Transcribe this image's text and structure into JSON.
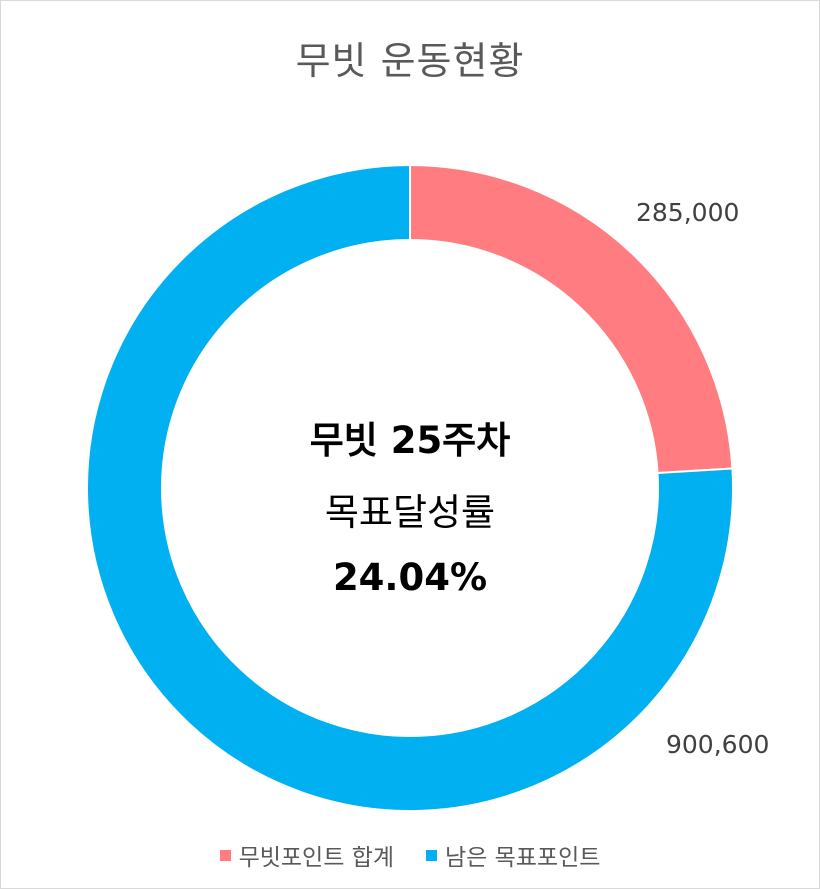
{
  "chart_data": {
    "type": "pie",
    "title": "무빗 운동현황",
    "categories": [
      "무빗포인트 합계",
      "남은 목표포인트"
    ],
    "values": [
      285000,
      900600
    ],
    "value_labels": [
      "285,000",
      "900,600"
    ],
    "colors": [
      "#ff7c80",
      "#00b0f0"
    ],
    "legend": "bottom",
    "donut": true
  },
  "center_text": {
    "line1": "무빗 25주차",
    "line2": "목표달성률",
    "line3": "24.04%"
  }
}
